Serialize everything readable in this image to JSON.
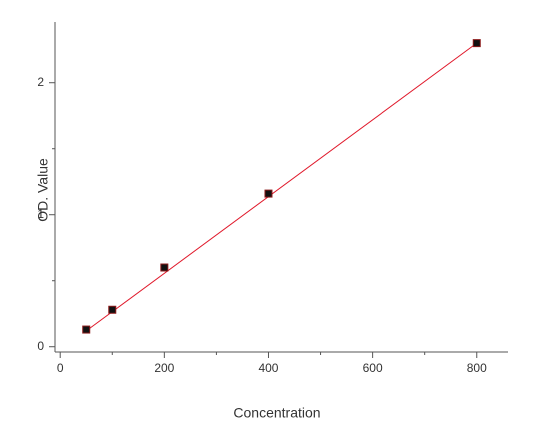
{
  "chart_data": {
    "type": "scatter",
    "x_label": "Concentration",
    "y_label": "OD. Value",
    "x": [
      50,
      100,
      200,
      400,
      800
    ],
    "values": [
      0.13,
      0.28,
      0.6,
      1.16,
      2.3
    ],
    "color": "#111111",
    "edge_color": "#8b1a1a",
    "fit": {
      "x": [
        50,
        800
      ],
      "values": [
        0.12,
        2.3
      ],
      "color": "#e0182a"
    },
    "xlim": [
      -10,
      860
    ],
    "ylim": [
      -0.04,
      2.46
    ],
    "xticks": [
      0,
      200,
      400,
      600,
      800
    ],
    "yticks": [
      0,
      1,
      2
    ],
    "xminorticks": [
      100,
      300,
      500,
      700
    ],
    "yminorticks": [
      0.5,
      1.5
    ],
    "grid": false
  }
}
